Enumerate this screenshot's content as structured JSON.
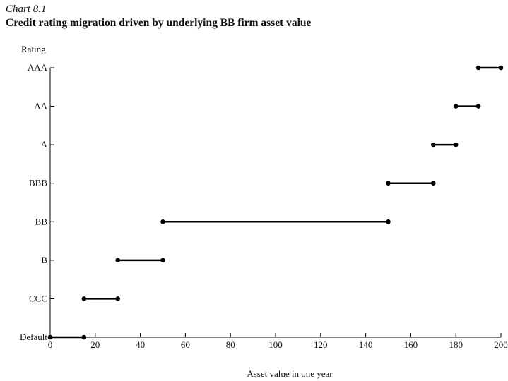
{
  "chart_number": "Chart 8.1",
  "title": "Credit rating migration driven by underlying BB firm asset value",
  "chart_data": {
    "type": "line",
    "title": "Credit rating migration driven by underlying BB firm asset value",
    "xlabel": "Asset value in one year",
    "ylabel": "Rating",
    "xlim": [
      0,
      200
    ],
    "xticks": [
      0,
      20,
      40,
      60,
      80,
      100,
      120,
      140,
      160,
      180,
      200
    ],
    "categories": [
      "Default",
      "CCC",
      "B",
      "BB",
      "BBB",
      "A",
      "AA",
      "AAA"
    ],
    "series": [
      {
        "rating": "Default",
        "x": [
          0,
          15
        ]
      },
      {
        "rating": "CCC",
        "x": [
          15,
          30
        ]
      },
      {
        "rating": "B",
        "x": [
          30,
          50
        ]
      },
      {
        "rating": "BB",
        "x": [
          50,
          150
        ]
      },
      {
        "rating": "BBB",
        "x": [
          150,
          170
        ]
      },
      {
        "rating": "A",
        "x": [
          170,
          180
        ]
      },
      {
        "rating": "AA",
        "x": [
          180,
          190
        ]
      },
      {
        "rating": "AAA",
        "x": [
          190,
          200
        ]
      }
    ],
    "grid": false,
    "colors": {
      "line": "#000000"
    }
  }
}
